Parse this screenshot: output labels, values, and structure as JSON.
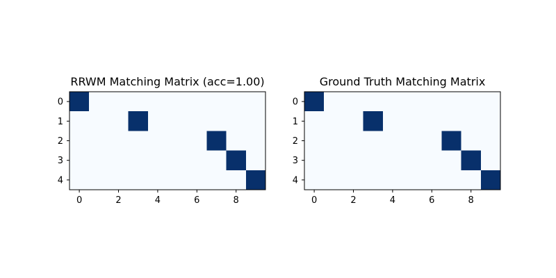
{
  "chart_data": [
    {
      "type": "heatmap",
      "title": "RRWM Matching Matrix (acc=1.00)",
      "xlabel": "",
      "ylabel": "",
      "rows": 5,
      "cols": 10,
      "x_ticks": [
        0,
        2,
        4,
        6,
        8
      ],
      "y_ticks": [
        0,
        1,
        2,
        3,
        4
      ],
      "colormap": {
        "low": "#f7fbff",
        "high": "#08306b"
      },
      "values": [
        [
          1,
          0,
          0,
          0,
          0,
          0,
          0,
          0,
          0,
          0
        ],
        [
          0,
          0,
          0,
          1,
          0,
          0,
          0,
          0,
          0,
          0
        ],
        [
          0,
          0,
          0,
          0,
          0,
          0,
          0,
          1,
          0,
          0
        ],
        [
          0,
          0,
          0,
          0,
          0,
          0,
          0,
          0,
          1,
          0
        ],
        [
          0,
          0,
          0,
          0,
          0,
          0,
          0,
          0,
          0,
          1
        ]
      ]
    },
    {
      "type": "heatmap",
      "title": "Ground Truth Matching Matrix",
      "xlabel": "",
      "ylabel": "",
      "rows": 5,
      "cols": 10,
      "x_ticks": [
        0,
        2,
        4,
        6,
        8
      ],
      "y_ticks": [
        0,
        1,
        2,
        3,
        4
      ],
      "colormap": {
        "low": "#f7fbff",
        "high": "#08306b"
      },
      "values": [
        [
          1,
          0,
          0,
          0,
          0,
          0,
          0,
          0,
          0,
          0
        ],
        [
          0,
          0,
          0,
          1,
          0,
          0,
          0,
          0,
          0,
          0
        ],
        [
          0,
          0,
          0,
          0,
          0,
          0,
          0,
          1,
          0,
          0
        ],
        [
          0,
          0,
          0,
          0,
          0,
          0,
          0,
          0,
          1,
          0
        ],
        [
          0,
          0,
          0,
          0,
          0,
          0,
          0,
          0,
          0,
          1
        ]
      ]
    }
  ]
}
